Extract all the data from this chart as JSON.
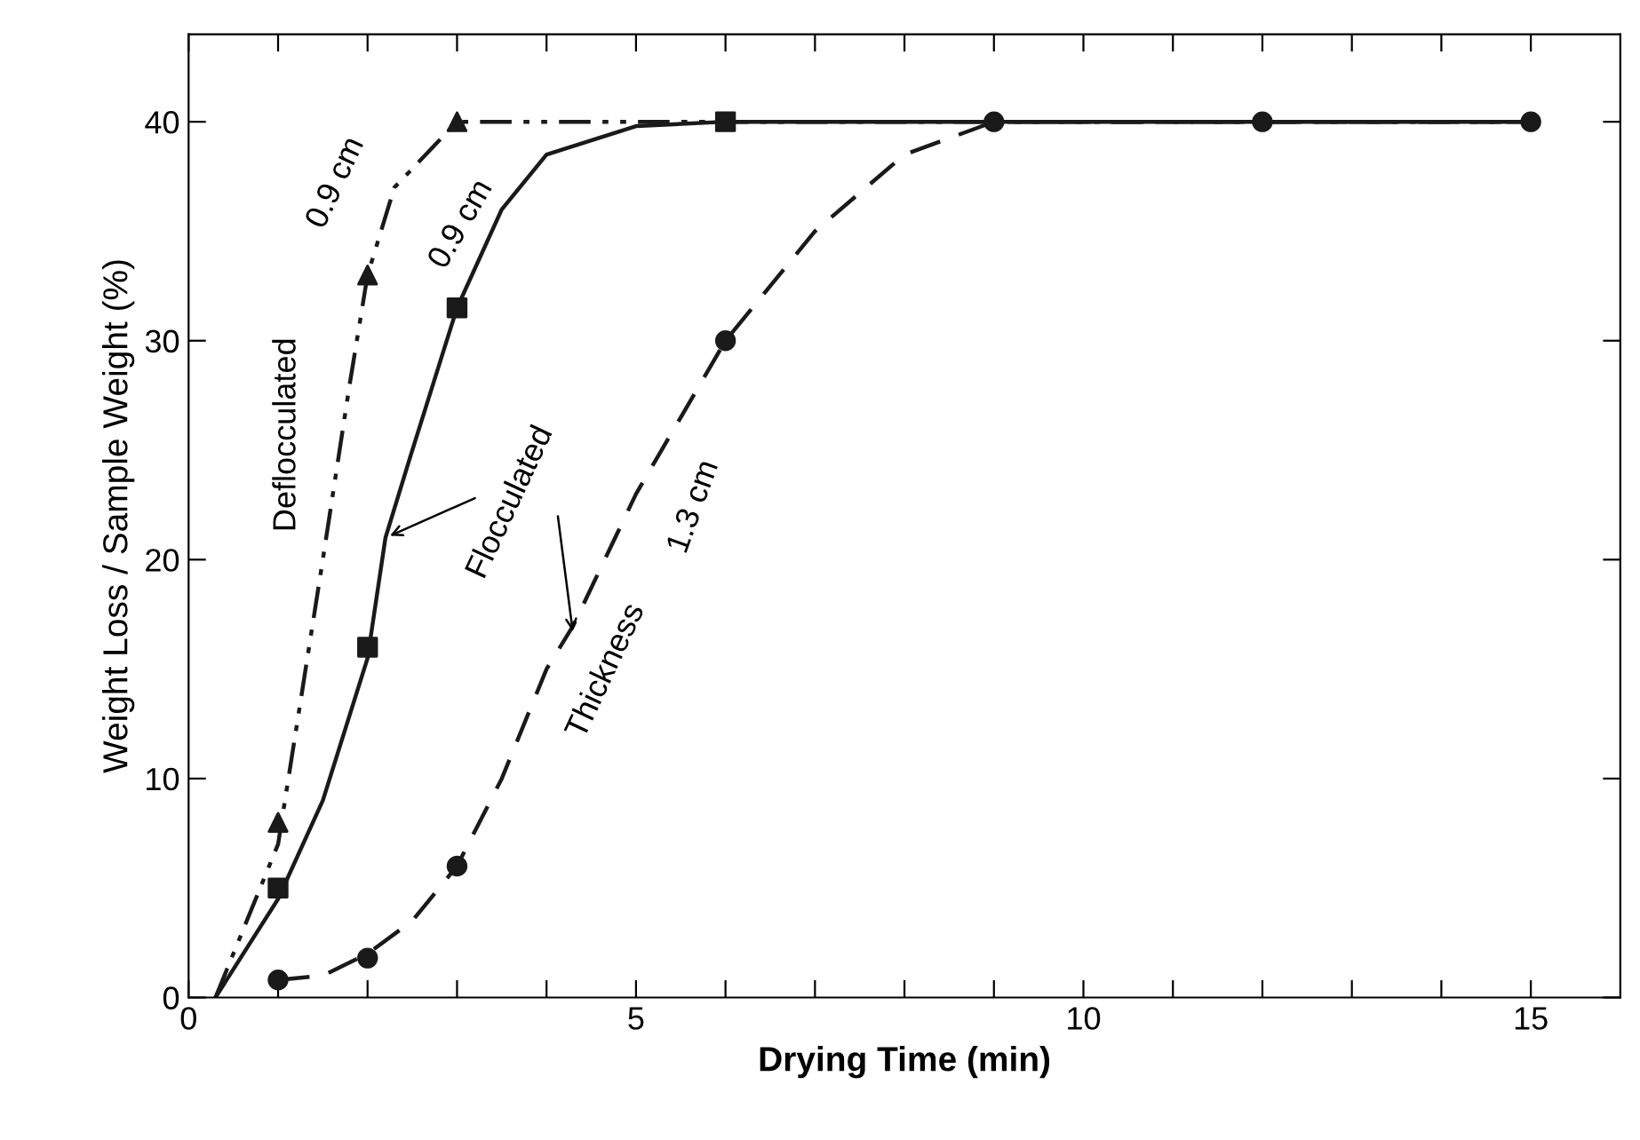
{
  "chart_data": {
    "type": "line",
    "xlabel": "Drying Time (min)",
    "ylabel": "Weight Loss / Sample Weight (%)",
    "xlim": [
      0,
      16
    ],
    "ylim": [
      0,
      44
    ],
    "xticks": [
      0,
      {
        "value": 1,
        "label": null
      },
      {
        "value": 2,
        "label": null
      },
      {
        "value": 3,
        "label": null
      },
      {
        "value": 4,
        "label": null
      },
      5,
      {
        "value": 6,
        "label": null
      },
      {
        "value": 7,
        "label": null
      },
      {
        "value": 8,
        "label": null
      },
      {
        "value": 9,
        "label": null
      },
      10,
      {
        "value": 11,
        "label": null
      },
      {
        "value": 12,
        "label": null
      },
      {
        "value": 13,
        "label": null
      },
      {
        "value": 14,
        "label": null
      },
      15
    ],
    "yticks": [
      0,
      10,
      20,
      30,
      40
    ],
    "grid": false,
    "legend": false,
    "series": [
      {
        "line_style": "solid",
        "marker": "none",
        "color": "#1a1a1a",
        "x": [
          0.3,
          1,
          1.5,
          2,
          2.2,
          2.5,
          3,
          3.5,
          4,
          5,
          6,
          15
        ],
        "values": [
          0,
          4.5,
          9,
          15.5,
          21,
          25,
          31.5,
          36,
          38.5,
          39.8,
          40,
          40
        ]
      },
      {
        "line_style": "dashdotdot",
        "marker": "none",
        "color": "#1a1a1a",
        "x": [
          0.3,
          1,
          1.5,
          1.8,
          2,
          2.3,
          3,
          15
        ],
        "values": [
          0,
          7,
          20,
          28,
          33,
          37,
          40,
          40
        ]
      },
      {
        "line_style": "dashed",
        "marker": "none",
        "color": "#1a1a1a",
        "x": [
          1,
          1.5,
          2,
          2.5,
          3,
          3.5,
          4,
          4.3,
          5,
          6,
          7,
          8,
          9,
          15
        ],
        "values": [
          0.8,
          1,
          2,
          3.5,
          6,
          10,
          15,
          17,
          23,
          30,
          35,
          38.5,
          40,
          40
        ]
      },
      {
        "type": "scatter",
        "marker": "square",
        "color": "#1a1a1a",
        "x": [
          1,
          2,
          3,
          6
        ],
        "values": [
          5,
          16,
          31.5,
          40
        ]
      },
      {
        "type": "scatter",
        "marker": "triangle",
        "color": "#1a1a1a",
        "x": [
          1,
          2,
          3
        ],
        "values": [
          8,
          33,
          40
        ]
      },
      {
        "type": "scatter",
        "marker": "circle",
        "color": "#1a1a1a",
        "x": [
          1,
          2,
          3,
          6,
          9,
          12,
          15
        ],
        "values": [
          0.8,
          1.8,
          6,
          30,
          40,
          40,
          40
        ]
      }
    ],
    "annotations": [
      "0.9 cm",
      "0.9 cm",
      "Deflocculated",
      {
        "text": "Flocculated",
        "x": 2.2,
        "y": 21
      },
      {
        "text": "Thickness",
        "x": 4.3,
        "y": 16.5
      },
      "1.3 cm"
    ]
  }
}
